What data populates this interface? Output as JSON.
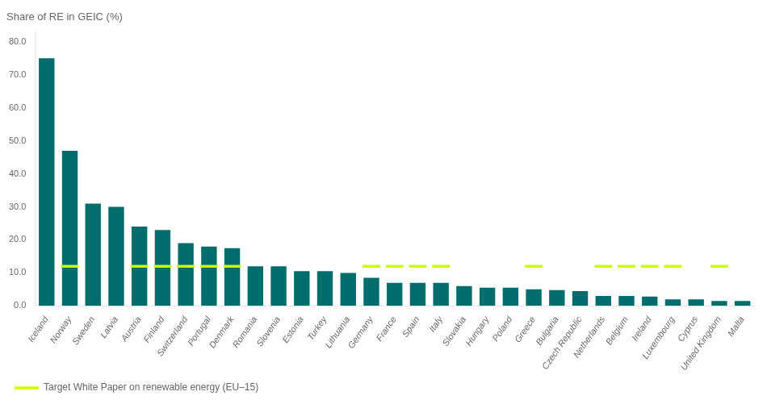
{
  "chart_data": {
    "type": "bar",
    "title": "Share of RE in GEIC (%)",
    "categories": [
      "Iceland",
      "Norway",
      "Sweden",
      "Latvia",
      "Austria",
      "Finland",
      "Switzerland",
      "Portugal",
      "Denmark",
      "Romania",
      "Slovenia",
      "Estonia",
      "Turkey",
      "Lithuania",
      "Germany",
      "France",
      "Spain",
      "Italy",
      "Slovakia",
      "Hungary",
      "Poland",
      "Greece",
      "Bulgaria",
      "Czech Republic",
      "Netherlands",
      "Belgium",
      "Ireland",
      "Luxembourg",
      "Cyprus",
      "United Kingdom",
      "Malta"
    ],
    "series": [
      {
        "type": "bar",
        "color": "#006d6d",
        "values": [
          75.0,
          47.0,
          31.0,
          30.0,
          24.0,
          23.0,
          19.0,
          18.0,
          17.5,
          12.0,
          12.0,
          10.5,
          10.5,
          10.0,
          8.5,
          7.0,
          7.0,
          7.0,
          6.0,
          5.5,
          5.5,
          5.0,
          4.8,
          4.5,
          3.0,
          3.0,
          2.8,
          2.0,
          2.0,
          1.5,
          1.5
        ]
      },
      {
        "name": "Target White Paper on renewable energy (EU–15)",
        "type": "scatter",
        "marker": "dash",
        "color": "#CCFF00",
        "values": [
          null,
          12.0,
          null,
          null,
          12.0,
          12.0,
          12.0,
          12.0,
          12.0,
          null,
          null,
          null,
          null,
          null,
          12.0,
          12.0,
          12.0,
          12.0,
          null,
          null,
          null,
          12.0,
          null,
          null,
          12.0,
          12.0,
          12.0,
          12.0,
          null,
          12.0,
          null
        ]
      }
    ],
    "ylim": [
      0,
      83
    ],
    "yticks": [
      {
        "value": 0,
        "label": "0.0"
      },
      {
        "value": 10,
        "label": "10.0"
      },
      {
        "value": 20,
        "label": "20.0"
      },
      {
        "value": 30,
        "label": "30.0"
      },
      {
        "value": 40,
        "label": "40.0"
      },
      {
        "value": 50,
        "label": "50.0"
      },
      {
        "value": 60,
        "label": "60.0"
      },
      {
        "value": 70,
        "label": "70.0"
      },
      {
        "value": 80,
        "label": "80.0"
      }
    ],
    "grid": false,
    "legend": "bottom"
  }
}
